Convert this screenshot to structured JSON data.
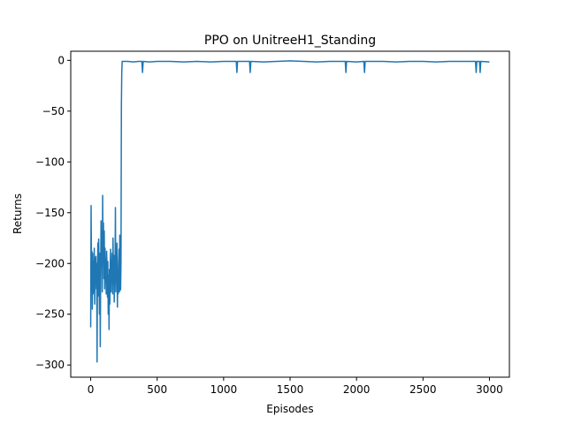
{
  "chart_data": {
    "type": "line",
    "title": "PPO on UnitreeH1_Standing",
    "xlabel": "Episodes",
    "ylabel": "Returns",
    "xlim": [
      -150,
      3150
    ],
    "ylim": [
      -312,
      9
    ],
    "xticks": [
      0,
      500,
      1000,
      1500,
      2000,
      2500,
      3000
    ],
    "yticks": [
      0,
      -50,
      -100,
      -150,
      -200,
      -250,
      -300
    ],
    "grid": false,
    "series": [
      {
        "color": "#1f77b4",
        "points": [
          [
            0,
            -263
          ],
          [
            3,
            -143
          ],
          [
            6,
            -205
          ],
          [
            9,
            -188
          ],
          [
            12,
            -245
          ],
          [
            15,
            -190
          ],
          [
            18,
            -230
          ],
          [
            21,
            -198
          ],
          [
            24,
            -228
          ],
          [
            27,
            -185
          ],
          [
            30,
            -240
          ],
          [
            33,
            -195
          ],
          [
            36,
            -216
          ],
          [
            39,
            -193
          ],
          [
            42,
            -225
          ],
          [
            45,
            -200
          ],
          [
            48,
            -297
          ],
          [
            51,
            -210
          ],
          [
            54,
            -180
          ],
          [
            57,
            -232
          ],
          [
            60,
            -176
          ],
          [
            63,
            -205
          ],
          [
            66,
            -250
          ],
          [
            69,
            -190
          ],
          [
            72,
            -282
          ],
          [
            75,
            -210
          ],
          [
            78,
            -158
          ],
          [
            81,
            -200
          ],
          [
            84,
            -172
          ],
          [
            87,
            -228
          ],
          [
            90,
            -133
          ],
          [
            93,
            -200
          ],
          [
            96,
            -160
          ],
          [
            99,
            -215
          ],
          [
            102,
            -168
          ],
          [
            105,
            -225
          ],
          [
            108,
            -185
          ],
          [
            111,
            -218
          ],
          [
            114,
            -196
          ],
          [
            117,
            -230
          ],
          [
            120,
            -188
          ],
          [
            123,
            -205
          ],
          [
            126,
            -233
          ],
          [
            129,
            -198
          ],
          [
            132,
            -250
          ],
          [
            135,
            -212
          ],
          [
            138,
            -265
          ],
          [
            141,
            -206
          ],
          [
            144,
            -240
          ],
          [
            147,
            -200
          ],
          [
            150,
            -186
          ],
          [
            153,
            -228
          ],
          [
            156,
            -198
          ],
          [
            159,
            -215
          ],
          [
            162,
            -190
          ],
          [
            165,
            -230
          ],
          [
            168,
            -175
          ],
          [
            171,
            -220
          ],
          [
            174,
            -192
          ],
          [
            177,
            -238
          ],
          [
            180,
            -200
          ],
          [
            183,
            -213
          ],
          [
            186,
            -145
          ],
          [
            189,
            -228
          ],
          [
            192,
            -190
          ],
          [
            195,
            -212
          ],
          [
            198,
            -180
          ],
          [
            201,
            -243
          ],
          [
            204,
            -208
          ],
          [
            207,
            -230
          ],
          [
            210,
            -200
          ],
          [
            213,
            -186
          ],
          [
            216,
            -228
          ],
          [
            219,
            -172
          ],
          [
            222,
            -220
          ],
          [
            225,
            -226
          ],
          [
            228,
            -200
          ],
          [
            231,
            -45
          ],
          [
            234,
            -10
          ],
          [
            237,
            -1
          ],
          [
            240,
            -1
          ],
          [
            280,
            -1
          ],
          [
            320,
            -1.5
          ],
          [
            360,
            -1
          ],
          [
            385,
            -1
          ],
          [
            390,
            -12
          ],
          [
            395,
            -1
          ],
          [
            440,
            -1.5
          ],
          [
            500,
            -1
          ],
          [
            600,
            -1
          ],
          [
            700,
            -1.5
          ],
          [
            800,
            -1
          ],
          [
            900,
            -1.5
          ],
          [
            1000,
            -1
          ],
          [
            1095,
            -1
          ],
          [
            1100,
            -12
          ],
          [
            1105,
            -1
          ],
          [
            1150,
            -1
          ],
          [
            1195,
            -1
          ],
          [
            1200,
            -12
          ],
          [
            1205,
            -1
          ],
          [
            1300,
            -1.5
          ],
          [
            1400,
            -1
          ],
          [
            1500,
            -0.5
          ],
          [
            1600,
            -1
          ],
          [
            1700,
            -1.5
          ],
          [
            1800,
            -1
          ],
          [
            1915,
            -1
          ],
          [
            1920,
            -12
          ],
          [
            1925,
            -1
          ],
          [
            2000,
            -1.5
          ],
          [
            2055,
            -1
          ],
          [
            2060,
            -12
          ],
          [
            2065,
            -1
          ],
          [
            2200,
            -1
          ],
          [
            2300,
            -1.5
          ],
          [
            2400,
            -1
          ],
          [
            2500,
            -1
          ],
          [
            2600,
            -1.5
          ],
          [
            2700,
            -1
          ],
          [
            2800,
            -1
          ],
          [
            2895,
            -1
          ],
          [
            2900,
            -12
          ],
          [
            2905,
            -1
          ],
          [
            2925,
            -1
          ],
          [
            2930,
            -12
          ],
          [
            2935,
            -1
          ],
          [
            3000,
            -1.5
          ]
        ]
      }
    ]
  }
}
